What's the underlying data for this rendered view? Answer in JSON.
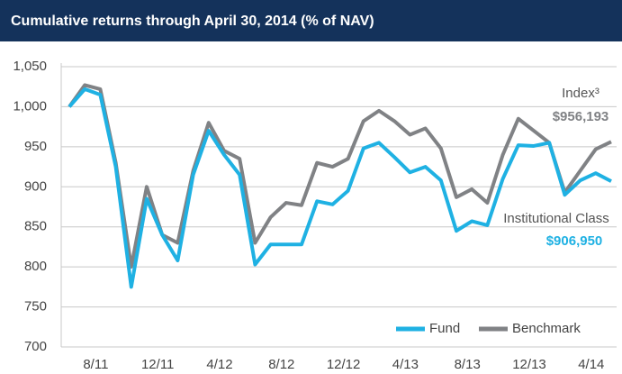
{
  "chart_data": {
    "type": "line",
    "title": "Cumulative returns through April 30, 2014 (% of NAV)",
    "categories": [
      null,
      null,
      "8/11",
      null,
      null,
      null,
      "12/11",
      null,
      null,
      null,
      "4/12",
      null,
      null,
      null,
      "8/12",
      null,
      null,
      null,
      "12/12",
      null,
      null,
      null,
      "4/13",
      null,
      null,
      null,
      "8/13",
      null,
      null,
      null,
      "12/13",
      null,
      null,
      null,
      "4/14",
      null
    ],
    "series": [
      {
        "name": "Fund",
        "color": "#1fb1e3",
        "values": [
          1000,
          1022,
          1015,
          925,
          775,
          885,
          840,
          808,
          915,
          970,
          940,
          915,
          803,
          828,
          828,
          828,
          882,
          878,
          895,
          948,
          955,
          937,
          918,
          925,
          908,
          845,
          857,
          852,
          910,
          952,
          951,
          955,
          890,
          908,
          917,
          906.95
        ]
      },
      {
        "name": "Benchmark",
        "color": "#808285",
        "values": [
          1000,
          1027,
          1022,
          930,
          800,
          900,
          840,
          830,
          920,
          980,
          945,
          935,
          830,
          862,
          880,
          877,
          930,
          925,
          935,
          982,
          995,
          982,
          965,
          973,
          948,
          887,
          897,
          880,
          940,
          985,
          970,
          955,
          893,
          920,
          947,
          956.193
        ]
      }
    ],
    "ylim": [
      700,
      1050
    ],
    "yticks": [
      700,
      750,
      800,
      850,
      900,
      950,
      {
        "value": 1000,
        "label": "1,000"
      },
      {
        "value": 1050,
        "label": "1,050"
      }
    ],
    "grid": true,
    "legend": "bottom-right",
    "annotations": [
      {
        "text": "Index³",
        "series": 1
      },
      {
        "text": "$956,193",
        "series": 1
      },
      {
        "text": "Institutional Class",
        "series": 0
      },
      {
        "text": "$906,950",
        "series": 0
      }
    ]
  }
}
